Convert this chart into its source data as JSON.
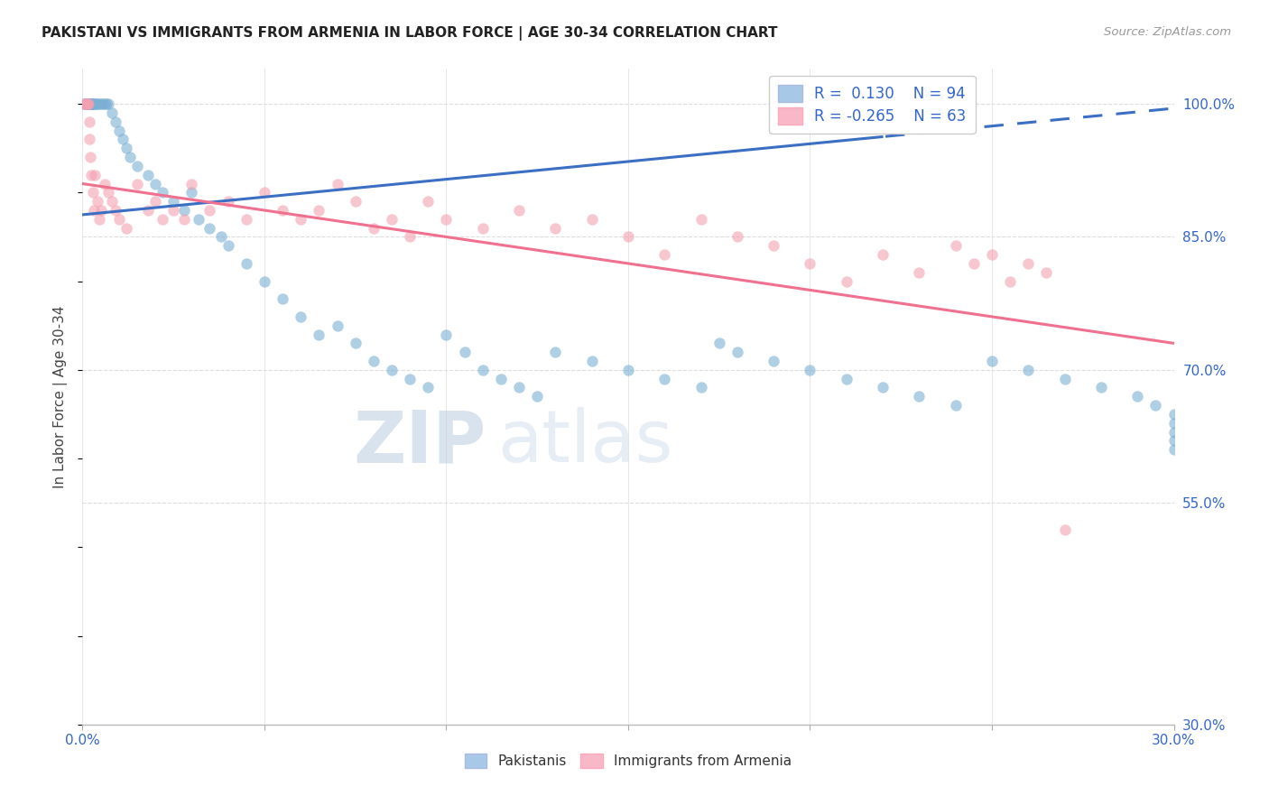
{
  "title": "PAKISTANI VS IMMIGRANTS FROM ARMENIA IN LABOR FORCE | AGE 30-34 CORRELATION CHART",
  "source": "Source: ZipAtlas.com",
  "ylabel": "In Labor Force | Age 30-34",
  "y_ticks": [
    30.0,
    55.0,
    70.0,
    85.0,
    100.0
  ],
  "x_ticks": [
    0,
    5,
    10,
    15,
    20,
    25,
    30
  ],
  "x_min": 0.0,
  "x_max": 30.0,
  "y_min": 30.0,
  "y_max": 104.0,
  "watermark": "ZIPatlas",
  "R_pak": 0.13,
  "N_pak": 94,
  "R_arm": -0.265,
  "N_arm": 63,
  "blue_scatter": "#7BAFD4",
  "pink_scatter": "#F4A0B0",
  "trend_blue": "#3B6FC4",
  "trend_pink": "#F07090",
  "blue_legend_patch": "#A8C8E8",
  "pink_legend_patch": "#F8B8C8",
  "axis_label_color": "#3366CC",
  "title_color": "#222222",
  "source_color": "#999999",
  "watermark_color": "#C5D8EA",
  "grid_color": "#DDDDDD",
  "bottom_legend_labels": [
    "Pakistanis",
    "Immigrants from Armenia"
  ],
  "pak_x": [
    0.05,
    0.07,
    0.08,
    0.09,
    0.1,
    0.1,
    0.11,
    0.12,
    0.13,
    0.14,
    0.15,
    0.15,
    0.16,
    0.17,
    0.18,
    0.19,
    0.2,
    0.21,
    0.22,
    0.23,
    0.24,
    0.25,
    0.26,
    0.27,
    0.28,
    0.3,
    0.32,
    0.35,
    0.38,
    0.4,
    0.45,
    0.5,
    0.55,
    0.6,
    0.65,
    0.7,
    0.8,
    0.9,
    1.0,
    1.1,
    1.2,
    1.3,
    1.5,
    1.8,
    2.0,
    2.2,
    2.5,
    2.8,
    3.0,
    3.2,
    3.5,
    3.8,
    4.0,
    4.5,
    5.0,
    5.5,
    6.0,
    6.5,
    7.0,
    7.5,
    8.0,
    8.5,
    9.0,
    9.5,
    10.0,
    10.5,
    11.0,
    11.5,
    12.0,
    12.5,
    13.0,
    14.0,
    15.0,
    16.0,
    17.0,
    17.5,
    18.0,
    19.0,
    20.0,
    21.0,
    22.0,
    23.0,
    24.0,
    25.0,
    26.0,
    27.0,
    28.0,
    29.0,
    29.5,
    30.0,
    30.0,
    30.0,
    30.0,
    30.0
  ],
  "pak_y": [
    100,
    100,
    100,
    100,
    100,
    100,
    100,
    100,
    100,
    100,
    100,
    100,
    100,
    100,
    100,
    100,
    100,
    100,
    100,
    100,
    100,
    100,
    100,
    100,
    100,
    100,
    100,
    100,
    100,
    100,
    100,
    100,
    100,
    100,
    100,
    100,
    99,
    98,
    97,
    96,
    95,
    94,
    93,
    92,
    91,
    90,
    89,
    88,
    90,
    87,
    86,
    85,
    84,
    82,
    80,
    78,
    76,
    74,
    75,
    73,
    71,
    70,
    69,
    68,
    74,
    72,
    70,
    69,
    68,
    67,
    72,
    71,
    70,
    69,
    68,
    73,
    72,
    71,
    70,
    69,
    68,
    67,
    66,
    71,
    70,
    69,
    68,
    67,
    66,
    65,
    64,
    63,
    62,
    61
  ],
  "arm_x": [
    0.06,
    0.08,
    0.1,
    0.12,
    0.14,
    0.16,
    0.18,
    0.2,
    0.22,
    0.25,
    0.28,
    0.32,
    0.35,
    0.4,
    0.45,
    0.5,
    0.6,
    0.7,
    0.8,
    0.9,
    1.0,
    1.2,
    1.5,
    1.8,
    2.0,
    2.2,
    2.5,
    2.8,
    3.0,
    3.5,
    4.0,
    4.5,
    5.0,
    5.5,
    6.0,
    6.5,
    7.0,
    7.5,
    8.0,
    8.5,
    9.0,
    9.5,
    10.0,
    11.0,
    12.0,
    13.0,
    14.0,
    15.0,
    16.0,
    17.0,
    18.0,
    19.0,
    20.0,
    21.0,
    22.0,
    23.0,
    24.0,
    24.5,
    25.0,
    25.5,
    26.0,
    26.5,
    27.0
  ],
  "arm_y": [
    100,
    100,
    100,
    100,
    100,
    100,
    98,
    96,
    94,
    92,
    90,
    88,
    92,
    89,
    87,
    88,
    91,
    90,
    89,
    88,
    87,
    86,
    91,
    88,
    89,
    87,
    88,
    87,
    91,
    88,
    89,
    87,
    90,
    88,
    87,
    88,
    91,
    89,
    86,
    87,
    85,
    89,
    87,
    86,
    88,
    86,
    87,
    85,
    83,
    87,
    85,
    84,
    82,
    80,
    83,
    81,
    84,
    82,
    83,
    80,
    82,
    81,
    52
  ]
}
